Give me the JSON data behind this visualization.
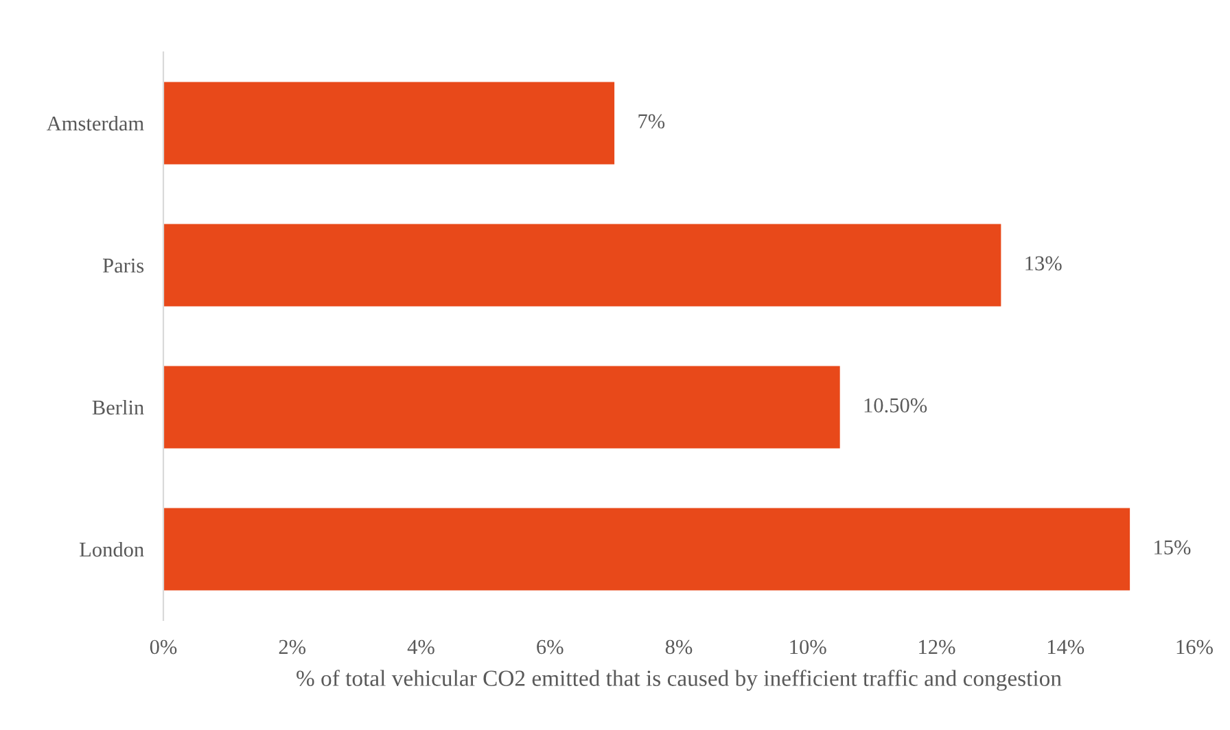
{
  "chart_data": {
    "type": "bar",
    "orientation": "horizontal",
    "xlabel": "% of total vehicular CO2 emitted that is caused by inefficient traffic and congestion",
    "categories": [
      "Amsterdam",
      "Paris",
      "Berlin",
      "London"
    ],
    "values": [
      7,
      13,
      10.5,
      15
    ],
    "value_labels": [
      "7%",
      "13%",
      "10.50%",
      "15%"
    ],
    "color": "#e8491a",
    "xlim": [
      0,
      16
    ],
    "xticks": [
      {
        "value": 0,
        "label": "0%"
      },
      {
        "value": 2,
        "label": "2%"
      },
      {
        "value": 4,
        "label": "4%"
      },
      {
        "value": 6,
        "label": "6%"
      },
      {
        "value": 8,
        "label": "8%"
      },
      {
        "value": 10,
        "label": "10%"
      },
      {
        "value": 12,
        "label": "12%"
      },
      {
        "value": 14,
        "label": "14%"
      },
      {
        "value": 16,
        "label": "16%"
      }
    ],
    "grid": false,
    "legend": false
  }
}
